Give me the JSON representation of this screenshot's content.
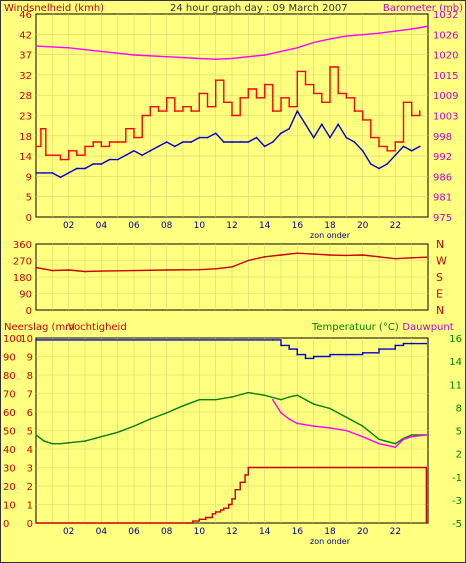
{
  "chart_data": [
    {
      "type": "line",
      "title": "24 hour graph day : 09 March 2007",
      "left_axis_label": "Windsnelheid (kmh)",
      "right_axis_label": "Barometer (mb)",
      "x_ticks": [
        "02",
        "04",
        "06",
        "08",
        "10",
        "12",
        "14",
        "16",
        "18",
        "20",
        "22"
      ],
      "x_note": "zon onder",
      "x_range": [
        0,
        24
      ],
      "left_ylim": [
        0,
        46
      ],
      "left_ticks": [
        "46",
        "42",
        "37",
        "32",
        "28",
        "23",
        "18",
        "14",
        "9",
        "5",
        "0"
      ],
      "right_ylim": [
        975,
        1032
      ],
      "right_ticks": [
        "1032",
        "1026",
        "1020",
        "1015",
        "1009",
        "1003",
        "998",
        "992",
        "986",
        "981",
        "975"
      ],
      "colors": {
        "wind": "#ff0000",
        "gust_avg": "#0000cc",
        "barometer": "#ff00ff",
        "left_text": "#cc0000",
        "right_text": "#cc00cc",
        "grid": "#cccc66"
      },
      "series": [
        {
          "axis": "left",
          "color": "#ff0000",
          "x": [
            0,
            0.3,
            0.6,
            1,
            1.5,
            2,
            2.5,
            3,
            3.5,
            4,
            4.5,
            5,
            5.5,
            6,
            6.5,
            7,
            7.5,
            8,
            8.5,
            9,
            9.5,
            10,
            10.5,
            11,
            11.5,
            12,
            12.5,
            13,
            13.5,
            14,
            14.5,
            15,
            15.5,
            16,
            16.5,
            17,
            17.5,
            18,
            18.5,
            19,
            19.5,
            20,
            20.5,
            21,
            21.5,
            22,
            22.5,
            23,
            23.5
          ],
          "y": [
            16,
            20,
            14,
            14,
            13,
            15,
            14,
            16,
            17,
            16,
            17,
            17,
            20,
            18,
            23,
            25,
            24,
            27,
            24,
            25,
            24,
            28,
            25,
            31,
            26,
            23,
            27,
            29,
            27,
            30,
            24,
            27,
            25,
            33,
            30,
            28,
            26,
            34,
            28,
            27,
            24,
            22,
            18,
            16,
            15,
            17,
            26,
            23,
            24
          ]
        },
        {
          "axis": "left",
          "color": "#0000cc",
          "x": [
            0,
            0.5,
            1,
            1.5,
            2,
            2.5,
            3,
            3.5,
            4,
            4.5,
            5,
            5.5,
            6,
            6.5,
            7,
            7.5,
            8,
            8.5,
            9,
            9.5,
            10,
            10.5,
            11,
            11.5,
            12,
            12.5,
            13,
            13.5,
            14,
            14.5,
            15,
            15.5,
            16,
            16.5,
            17,
            17.5,
            18,
            18.5,
            19,
            19.5,
            20,
            20.5,
            21,
            21.5,
            22,
            22.5,
            23,
            23.5
          ],
          "y": [
            10,
            10,
            10,
            9,
            10,
            11,
            11,
            12,
            12,
            13,
            13,
            14,
            15,
            14,
            15,
            16,
            17,
            16,
            17,
            17,
            18,
            18,
            19,
            17,
            17,
            17,
            17,
            18,
            16,
            17,
            19,
            20,
            24,
            21,
            18,
            21,
            18,
            21,
            18,
            17,
            15,
            12,
            11,
            12,
            14,
            16,
            15,
            16
          ]
        },
        {
          "axis": "right",
          "color": "#ff00ff",
          "x": [
            0,
            2,
            4,
            6,
            8,
            10,
            11,
            12,
            13,
            14,
            15,
            16,
            17,
            18,
            19,
            20,
            21,
            22,
            23,
            23.9
          ],
          "y": [
            1023,
            1022.5,
            1021.5,
            1020.5,
            1020,
            1019.5,
            1019.3,
            1019.5,
            1020,
            1020.5,
            1021.5,
            1022.5,
            1024,
            1025,
            1025.8,
            1026.2,
            1026.6,
            1027.2,
            1027.8,
            1028.5
          ]
        }
      ]
    },
    {
      "type": "line",
      "title": "",
      "left_ylim": [
        0,
        360
      ],
      "left_ticks": [
        "360",
        "270",
        "180",
        "90",
        "0"
      ],
      "right_labels": [
        "N",
        "W",
        "S",
        "E",
        "N"
      ],
      "x_range": [
        0,
        24
      ],
      "colors": {
        "line": "#cc0000"
      },
      "series": [
        {
          "axis": "left",
          "color": "#cc0000",
          "x": [
            0,
            1,
            2,
            3,
            4,
            6,
            8,
            10,
            11,
            12,
            13,
            14,
            15,
            16,
            17,
            18,
            19,
            20,
            21,
            22,
            23,
            23.9
          ],
          "y": [
            232,
            215,
            218,
            210,
            212,
            215,
            218,
            220,
            225,
            235,
            270,
            290,
            300,
            310,
            305,
            300,
            298,
            300,
            290,
            280,
            285,
            288
          ]
        }
      ]
    },
    {
      "type": "line",
      "title": "",
      "left_axis_label": "Neerslag (mm",
      "second_axis_label": "Vochtigheid",
      "right_axis_label": "Temperatuur (°C)",
      "right_axis_label2": "Dauwpunt",
      "x_ticks": [
        "02",
        "04",
        "06",
        "08",
        "10",
        "12",
        "14",
        "16",
        "18",
        "20",
        "22"
      ],
      "x_note": "zon onder",
      "x_range": [
        0,
        24
      ],
      "rain_ticks": [
        "10",
        "9",
        "8",
        "7",
        "6",
        "5",
        "4",
        "3",
        "2",
        "1",
        "0"
      ],
      "humidity_ticks": [
        "100",
        "90",
        "80",
        "70",
        "60",
        "50",
        "40",
        "30",
        "20",
        "10",
        "0"
      ],
      "temp_ylim": [
        -5,
        16
      ],
      "temp_ticks": [
        "16",
        "14",
        "11",
        "8",
        "5",
        "2",
        "-1",
        "-3",
        "-5"
      ],
      "colors": {
        "humidity": "#0000cc",
        "temperature": "#008000",
        "dewpoint": "#ff00ff",
        "rain": "#cc0000",
        "left_text": "#cc0000",
        "right_text": "#008000"
      },
      "series": [
        {
          "name": "Vochtigheid",
          "axis": "humidity",
          "color": "#0000cc",
          "x": [
            0,
            14.5,
            15,
            15.5,
            16,
            16.5,
            17,
            18,
            19,
            20,
            21,
            22,
            22.5,
            23,
            23.9
          ],
          "y": [
            99,
            99,
            96,
            94,
            91,
            89,
            90,
            91,
            91,
            92,
            94,
            96,
            97,
            97,
            97
          ]
        },
        {
          "name": "Temperatuur",
          "axis": "temp",
          "color": "#008000",
          "x": [
            0,
            0.5,
            1,
            1.5,
            2,
            3,
            4,
            5,
            6,
            7,
            8,
            9,
            10,
            11,
            12,
            13,
            14,
            15,
            15.5,
            16,
            17,
            18,
            19,
            20,
            21,
            22,
            22.5,
            23,
            23.9
          ],
          "y": [
            5,
            4.3,
            4,
            4,
            4.1,
            4.3,
            4.8,
            5.3,
            6,
            6.8,
            7.5,
            8.3,
            9,
            9,
            9.3,
            9.8,
            9.5,
            9,
            9.3,
            9.5,
            8.5,
            8,
            7,
            6,
            4.5,
            4,
            4.6,
            5,
            5
          ]
        },
        {
          "name": "Dauwpunt",
          "axis": "temp",
          "color": "#ff00ff",
          "x": [
            14.5,
            15,
            15.5,
            16,
            17,
            18,
            19,
            20,
            21,
            22,
            22.5,
            23,
            23.9
          ],
          "y": [
            9,
            7.5,
            6.8,
            6.3,
            6,
            5.8,
            5.5,
            4.8,
            4,
            3.6,
            4.5,
            4.8,
            5
          ]
        },
        {
          "name": "Neerslag",
          "axis": "rain",
          "color": "#cc0000",
          "x": [
            0,
            9.3,
            9.6,
            10,
            10.4,
            10.8,
            11,
            11.3,
            11.5,
            11.8,
            12,
            12.2,
            12.5,
            12.8,
            13,
            14,
            16,
            18,
            20,
            22,
            23.8,
            23.9
          ],
          "y": [
            0,
            0,
            0.1,
            0.2,
            0.3,
            0.5,
            0.6,
            0.7,
            0.8,
            1,
            1.3,
            1.8,
            2.2,
            2.6,
            3,
            3,
            3,
            3,
            3,
            3,
            3,
            0
          ]
        }
      ]
    }
  ]
}
